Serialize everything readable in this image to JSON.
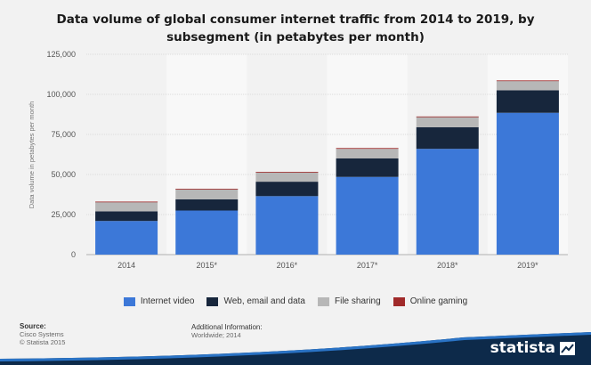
{
  "chart_data": {
    "type": "bar",
    "stacked": true,
    "title": "Data volume of global consumer internet traffic from 2014 to 2019, by subsegment (in petabytes per month)",
    "xlabel": "",
    "ylabel": "Data volume in petabytes per month",
    "categories": [
      "2014",
      "2015*",
      "2016*",
      "2017*",
      "2018*",
      "2019*"
    ],
    "ylim": [
      0,
      125000
    ],
    "yticks": [
      0,
      25000,
      50000,
      75000,
      100000,
      125000
    ],
    "ytick_labels": [
      "0",
      "25,000",
      "50,000",
      "75,000",
      "100,000",
      "125,000"
    ],
    "grid": true,
    "legend_position": "bottom",
    "series": [
      {
        "name": "Internet video",
        "color": "#3c78d8",
        "values": [
          21000,
          27500,
          36500,
          48500,
          66000,
          88500
        ]
      },
      {
        "name": "Web, email and data",
        "color": "#17263c",
        "values": [
          6000,
          7000,
          9000,
          11500,
          13500,
          14000
        ]
      },
      {
        "name": "File sharing",
        "color": "#b7b7b7",
        "values": [
          6000,
          6500,
          6000,
          6000,
          6500,
          6000
        ]
      },
      {
        "name": "Online gaming",
        "color": "#a02a2a",
        "values": [
          80,
          100,
          150,
          500,
          200,
          200
        ]
      }
    ]
  },
  "legend": {
    "items": [
      "Internet video",
      "Web, email and data",
      "File sharing",
      "Online gaming"
    ]
  },
  "source": {
    "heading": "Source:",
    "line1": "Cisco Systems",
    "line2": "© Statista 2015"
  },
  "additional_info": {
    "heading": "Additional Information:",
    "text": "Worldwide; 2014"
  },
  "brand": {
    "name": "statista",
    "color": "#0d2a4a",
    "accent": "#2a73c5"
  }
}
